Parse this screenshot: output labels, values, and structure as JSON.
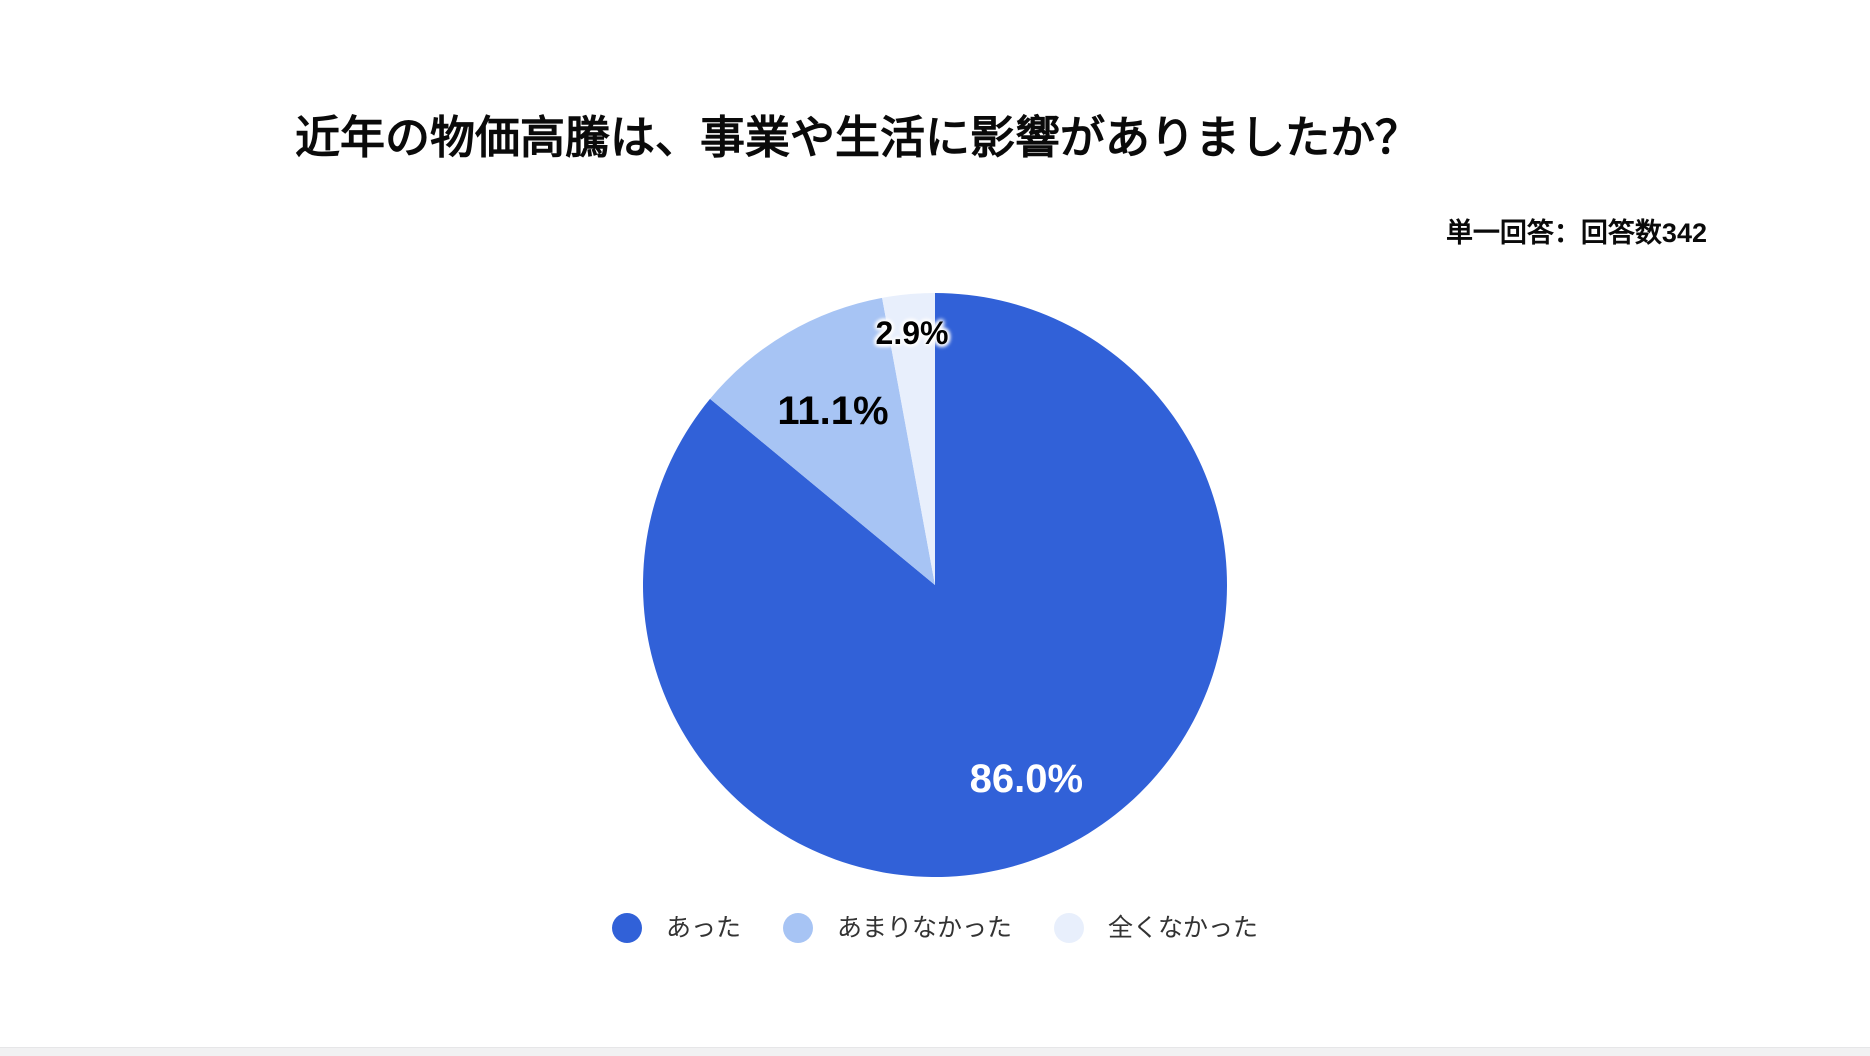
{
  "page": {
    "background": "#ffffff",
    "bottom_bar_color": "#f1f1f2"
  },
  "chart_data": {
    "type": "pie",
    "title": "近年の物価高騰は、事業や生活に影響がありましたか？",
    "note": "単一回答：回答数342",
    "categories": [
      "あった",
      "あまりなかった",
      "全くなかった"
    ],
    "values": [
      86.0,
      11.1,
      2.9
    ],
    "slice_labels": [
      "86.0%",
      "11.1%",
      "2.9%"
    ],
    "slice_colors": [
      "#3161d8",
      "#a7c4f4",
      "#e8effc"
    ],
    "slice_label_colors": [
      "#ffffff",
      "#000000",
      "#000000"
    ],
    "start_angle_deg": 0,
    "direction": "clockwise",
    "legend_position": "bottom"
  }
}
